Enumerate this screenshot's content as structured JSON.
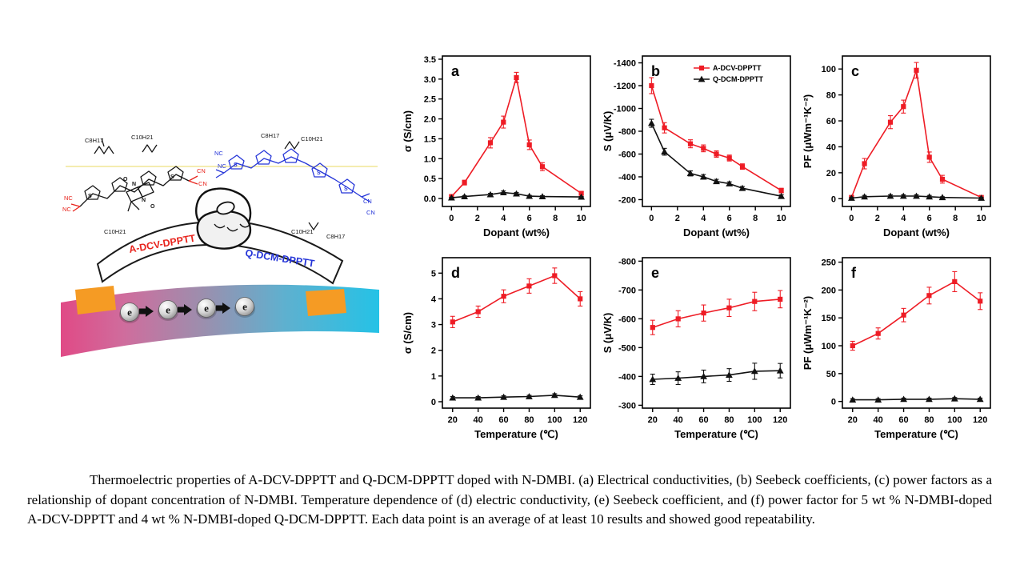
{
  "page": {
    "background": "#ffffff"
  },
  "graphic": {
    "red_polymer_label": "A-DCV-DPPTT",
    "blue_polymer_label": "Q-DCM-DPPTT",
    "electron_label": "e",
    "alkyl_c8": "C8H17",
    "alkyl_c10": "C10H21",
    "nitrile_nc": "NC",
    "nitrile_cn": "CN",
    "atom_s": "S",
    "atom_n": "N",
    "atom_o": "O",
    "colors": {
      "red": "#e8241d",
      "blue": "#2535d8",
      "electrode_orange": "#f59b24",
      "band_left": "#e04a86",
      "band_right": "#25c2e6"
    }
  },
  "chart_data": [
    {
      "type": "line",
      "panel_label": "a",
      "xlabel": "Dopant (wt%)",
      "ylabel": "σ (S/cm)",
      "xlim": [
        -0.7,
        10.7
      ],
      "xticks": [
        0,
        2,
        4,
        6,
        8,
        10
      ],
      "ylim": [
        -0.2,
        3.58
      ],
      "yticks": [
        0,
        0.5,
        1,
        1.5,
        2,
        2.5,
        3,
        3.5
      ],
      "ydec": 1,
      "x": [
        0,
        1,
        3,
        4,
        5,
        6,
        7,
        10
      ],
      "series": [
        {
          "name": "A-DCV-DPPTT",
          "color": "#ee1c25",
          "marker": "square",
          "values": [
            0.05,
            0.4,
            1.4,
            1.92,
            3.04,
            1.35,
            0.8,
            0.13
          ],
          "err": [
            0.03,
            0.06,
            0.13,
            0.15,
            0.13,
            0.12,
            0.1,
            0.04
          ]
        },
        {
          "name": "Q-DCM-DPPTT",
          "color": "#111111",
          "marker": "triangle",
          "values": [
            0.02,
            0.05,
            0.1,
            0.15,
            0.12,
            0.06,
            0.05,
            0.04
          ],
          "err": [
            0.01,
            0.02,
            0.03,
            0.04,
            0.03,
            0.02,
            0.02,
            0.01
          ]
        }
      ]
    },
    {
      "type": "line",
      "panel_label": "b",
      "legend": true,
      "xlabel": "Dopant (wt%)",
      "ylabel": "S (μV/K)",
      "xlim": [
        -0.7,
        10.7
      ],
      "xticks": [
        0,
        2,
        4,
        6,
        8,
        10
      ],
      "ylim": [
        -140,
        -1460
      ],
      "yticks": [
        -200,
        -400,
        -600,
        -800,
        -1000,
        -1200,
        -1400
      ],
      "ydec": 0,
      "x": [
        0,
        1,
        3,
        4,
        5,
        6,
        7,
        10
      ],
      "series": [
        {
          "name": "A-DCV-DPPTT",
          "color": "#ee1c25",
          "marker": "square",
          "values": [
            -1200,
            -830,
            -690,
            -650,
            -600,
            -565,
            -490,
            -280
          ],
          "err": [
            70,
            45,
            35,
            30,
            28,
            26,
            24,
            20
          ]
        },
        {
          "name": "Q-DCM-DPPTT",
          "color": "#111111",
          "marker": "triangle",
          "values": [
            -870,
            -620,
            -430,
            -400,
            -360,
            -340,
            -300,
            -230
          ],
          "err": [
            35,
            30,
            22,
            20,
            18,
            16,
            15,
            12
          ]
        }
      ]
    },
    {
      "type": "line",
      "panel_label": "c",
      "xlabel": "Dopant (wt%)",
      "ylabel": "PF (μWm⁻¹K⁻²)",
      "xlim": [
        -0.7,
        10.7
      ],
      "xticks": [
        0,
        2,
        4,
        6,
        8,
        10
      ],
      "ylim": [
        -6,
        110
      ],
      "yticks": [
        0,
        20,
        40,
        60,
        80,
        100
      ],
      "ydec": 0,
      "x": [
        0,
        1,
        3,
        4,
        5,
        6,
        7,
        10
      ],
      "series": [
        {
          "name": "A-DCV-DPPTT",
          "color": "#ee1c25",
          "marker": "square",
          "values": [
            1,
            27,
            59,
            71,
            99,
            32,
            15,
            1
          ],
          "err": [
            1,
            4,
            5,
            5,
            6,
            4,
            3,
            1
          ]
        },
        {
          "name": "Q-DCM-DPPTT",
          "color": "#111111",
          "marker": "triangle",
          "values": [
            0.5,
            1.5,
            2,
            2,
            2,
            1.5,
            1,
            0.5
          ],
          "err": [
            0.5,
            1,
            1,
            1,
            1,
            1,
            0.5,
            0.5
          ]
        }
      ]
    },
    {
      "type": "line",
      "panel_label": "d",
      "xlabel": "Temperature (℃)",
      "ylabel": "σ (S/cm)",
      "xlim": [
        12,
        128
      ],
      "xticks": [
        20,
        40,
        60,
        80,
        100,
        120
      ],
      "ylim": [
        -0.25,
        5.6
      ],
      "yticks": [
        0,
        1,
        2,
        3,
        4,
        5
      ],
      "ydec": 0,
      "x": [
        20,
        40,
        60,
        80,
        100,
        120
      ],
      "series": [
        {
          "name": "A-DCV-DPPTT",
          "color": "#ee1c25",
          "marker": "square",
          "values": [
            3.1,
            3.5,
            4.1,
            4.5,
            4.9,
            4.0
          ],
          "err": [
            0.22,
            0.22,
            0.25,
            0.28,
            0.3,
            0.28
          ]
        },
        {
          "name": "Q-DCM-DPPTT",
          "color": "#111111",
          "marker": "triangle",
          "values": [
            0.15,
            0.15,
            0.18,
            0.2,
            0.25,
            0.18
          ],
          "err": [
            0.05,
            0.05,
            0.05,
            0.05,
            0.06,
            0.05
          ]
        }
      ]
    },
    {
      "type": "line",
      "panel_label": "e",
      "xlabel": "Temperature (℃)",
      "ylabel": "S (μV/K)",
      "xlim": [
        12,
        128
      ],
      "xticks": [
        20,
        40,
        60,
        80,
        100,
        120
      ],
      "ylim": [
        -290,
        -812
      ],
      "yticks": [
        -300,
        -400,
        -500,
        -600,
        -700,
        -800
      ],
      "ydec": 0,
      "x": [
        20,
        40,
        60,
        80,
        100,
        120
      ],
      "series": [
        {
          "name": "A-DCV-DPPTT",
          "color": "#ee1c25",
          "marker": "square",
          "values": [
            -570,
            -600,
            -620,
            -638,
            -660,
            -668
          ],
          "err": [
            25,
            28,
            28,
            30,
            32,
            30
          ]
        },
        {
          "name": "Q-DCM-DPPTT",
          "color": "#111111",
          "marker": "triangle",
          "values": [
            -390,
            -394,
            -400,
            -405,
            -418,
            -420
          ],
          "err": [
            18,
            22,
            22,
            22,
            28,
            25
          ]
        }
      ]
    },
    {
      "type": "line",
      "panel_label": "f",
      "xlabel": "Temperature (℃)",
      "ylabel": "PF (μWm⁻¹K⁻²)",
      "xlim": [
        12,
        128
      ],
      "xticks": [
        20,
        40,
        60,
        80,
        100,
        120
      ],
      "ylim": [
        -12,
        258
      ],
      "yticks": [
        0,
        50,
        100,
        150,
        200,
        250
      ],
      "ydec": 0,
      "x": [
        20,
        40,
        60,
        80,
        100,
        120
      ],
      "series": [
        {
          "name": "A-DCV-DPPTT",
          "color": "#ee1c25",
          "marker": "square",
          "values": [
            100,
            122,
            155,
            190,
            215,
            180
          ],
          "err": [
            8,
            10,
            12,
            15,
            18,
            15
          ]
        },
        {
          "name": "Q-DCM-DPPTT",
          "color": "#111111",
          "marker": "triangle",
          "values": [
            3,
            3,
            4,
            4,
            5,
            4
          ],
          "err": [
            2,
            2,
            2,
            2,
            2,
            2
          ]
        }
      ]
    }
  ],
  "caption": {
    "text": "Thermoelectric properties of A-DCV-DPPTT and Q-DCM-DPPTT doped with N-DMBI. (a) Electrical conductivities, (b) Seebeck coefficients, (c) power factors as a relationship of dopant concentration of N-DMBI. Temperature dependence of (d) electric conductivity, (e) Seebeck coefficient, and (f) power factor for 5 wt % N-DMBI-doped A-DCV-DPPTT and 4 wt % N-DMBI-doped Q-DCM-DPPTT. Each data point is an average of at least 10 results and showed good repeatability."
  }
}
